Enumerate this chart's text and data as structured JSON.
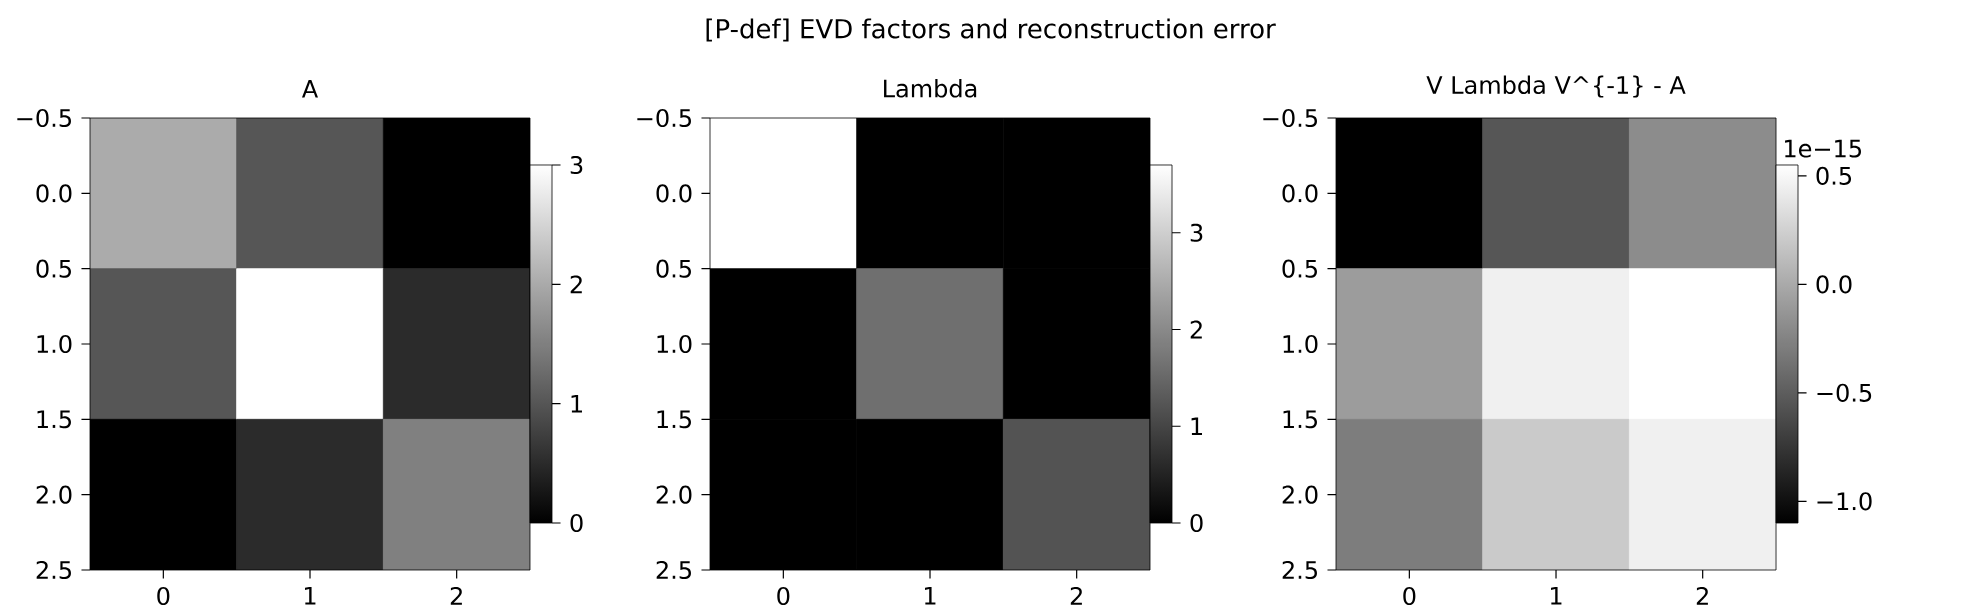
{
  "chart_data": [
    {
      "type": "other",
      "title": "[P-def] EVD factors and reconstruction error"
    },
    {
      "type": "heatmap",
      "title": "A",
      "xlim": [
        -0.5,
        2.5
      ],
      "ylim": [
        2.5,
        -0.5
      ],
      "xticks": [
        0,
        1,
        2
      ],
      "yticks": [
        {
          "value": -0.5,
          "label": "−0.5"
        },
        {
          "value": 0,
          "label": "0.0"
        },
        {
          "value": 0.5,
          "label": "0.5"
        },
        {
          "value": 1,
          "label": "1.0"
        },
        {
          "value": 1.5,
          "label": "1.5"
        },
        {
          "value": 2,
          "label": "2.0"
        },
        {
          "value": 2.5,
          "label": "2.5"
        }
      ],
      "cells": [
        [
          2,
          1,
          0
        ],
        [
          1,
          3,
          0.5
        ],
        [
          0,
          0.5,
          1.5
        ]
      ],
      "clim": [
        0,
        3
      ],
      "cticks": [
        0,
        1,
        2,
        3
      ]
    },
    {
      "type": "heatmap",
      "title": "Lambda",
      "xlim": [
        -0.5,
        2.5
      ],
      "ylim": [
        2.5,
        -0.5
      ],
      "xticks": [
        0,
        1,
        2
      ],
      "yticks": [
        {
          "value": -0.5,
          "label": "−0.5"
        },
        {
          "value": 0,
          "label": "0.0"
        },
        {
          "value": 0.5,
          "label": "0.5"
        },
        {
          "value": 1,
          "label": "1.0"
        },
        {
          "value": 1.5,
          "label": "1.5"
        },
        {
          "value": 2,
          "label": "2.0"
        },
        {
          "value": 2.5,
          "label": "2.5"
        }
      ],
      "cells": [
        [
          3.7,
          0,
          0
        ],
        [
          0,
          1.6,
          0
        ],
        [
          0,
          0,
          1.2
        ]
      ],
      "clim": [
        0,
        3.7
      ],
      "cticks": [
        0,
        1,
        2,
        3
      ]
    },
    {
      "type": "heatmap",
      "title": "V Lambda V^{-1} - A",
      "xlim": [
        -0.5,
        2.5
      ],
      "ylim": [
        2.5,
        -0.5
      ],
      "xticks": [
        0,
        1,
        2
      ],
      "yticks": [
        {
          "value": -0.5,
          "label": "−0.5"
        },
        {
          "value": 0,
          "label": "0.0"
        },
        {
          "value": 0.5,
          "label": "0.5"
        },
        {
          "value": 1,
          "label": "1.0"
        },
        {
          "value": 1.5,
          "label": "1.5"
        },
        {
          "value": 2,
          "label": "2.0"
        },
        {
          "value": 2.5,
          "label": "2.5"
        }
      ],
      "cells": [
        [
          -1.1,
          -0.55,
          -0.2
        ],
        [
          -0.1,
          0.44,
          0.55
        ],
        [
          -0.3,
          0.2,
          0.44
        ]
      ],
      "clim": [
        -1.1,
        0.55
      ],
      "cticks": [
        {
          "value": -1,
          "label": "−1.0"
        },
        {
          "value": -0.5,
          "label": "−0.5"
        },
        {
          "value": 0,
          "label": "0.0"
        },
        {
          "value": 0.5,
          "label": "0.5"
        }
      ],
      "annotations": [
        "1e−15"
      ]
    }
  ]
}
